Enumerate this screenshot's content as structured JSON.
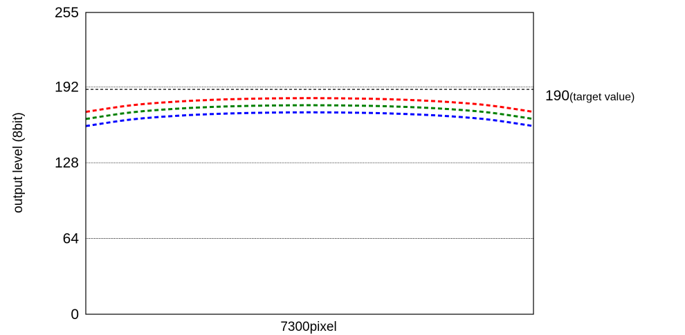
{
  "chart_data": {
    "type": "line",
    "title": "",
    "xlabel": "7300pixel",
    "ylabel": "output level (8bit)",
    "ylim": [
      0,
      255
    ],
    "yticks": [
      "0",
      "64",
      "128",
      "192",
      "255"
    ],
    "ytick_values": [
      0,
      64,
      128,
      192,
      255
    ],
    "gridlines": [
      64,
      128,
      192
    ],
    "grid": true,
    "xlim": [
      0,
      1
    ],
    "x": [
      0,
      0.1,
      0.2,
      0.3,
      0.4,
      0.5,
      0.6,
      0.7,
      0.8,
      0.9,
      1.0
    ],
    "series": [
      {
        "color": "#ff0000",
        "values": [
          171,
          176.5,
          179.6,
          181.4,
          182.3,
          182.6,
          182.3,
          181.4,
          179.6,
          176.5,
          171
        ]
      },
      {
        "color": "#008000",
        "values": [
          165,
          170.5,
          173.6,
          175.4,
          176.3,
          176.6,
          176.3,
          175.4,
          173.6,
          170.5,
          165
        ]
      },
      {
        "color": "#0000ff",
        "values": [
          159,
          164.5,
          167.6,
          169.4,
          170.3,
          170.6,
          170.3,
          169.4,
          167.6,
          164.5,
          159
        ]
      }
    ],
    "reference_line": {
      "value": 190,
      "label_value": "190",
      "label_paren": "(target value)"
    }
  }
}
